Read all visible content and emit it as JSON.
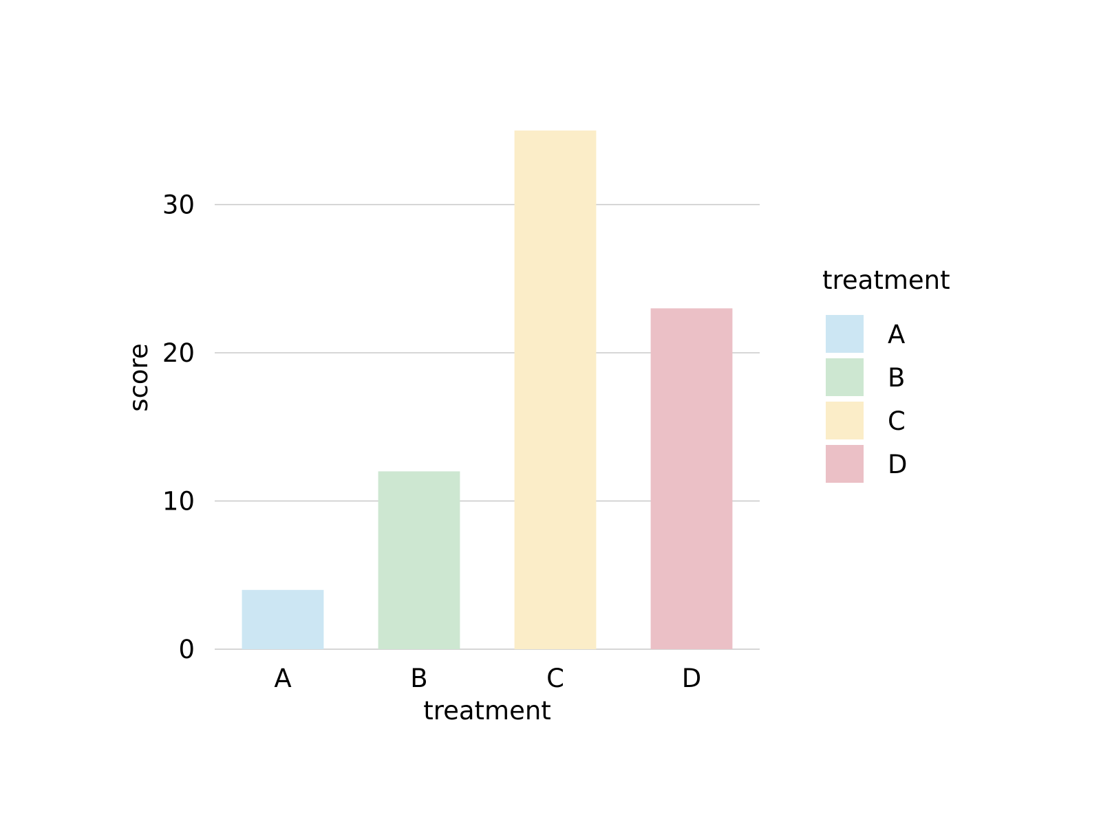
{
  "chart_data": {
    "type": "bar",
    "title": "",
    "xlabel": "treatment",
    "ylabel": "score",
    "categories": [
      "A",
      "B",
      "C",
      "D"
    ],
    "values": [
      4,
      12,
      35,
      23
    ],
    "colors": [
      "#cce6f3",
      "#cde7d1",
      "#fbedc8",
      "#ebc0c6"
    ],
    "ylim": [
      0,
      36
    ],
    "yticks": [
      0,
      10,
      20,
      30
    ],
    "ytick_labels": [
      "0",
      "10",
      "20",
      "30"
    ],
    "grid": "horizontal",
    "gridline_color": "#c8c8c8",
    "legend": {
      "title": "treatment",
      "placement": "right",
      "entries": [
        "A",
        "B",
        "C",
        "D"
      ]
    }
  }
}
